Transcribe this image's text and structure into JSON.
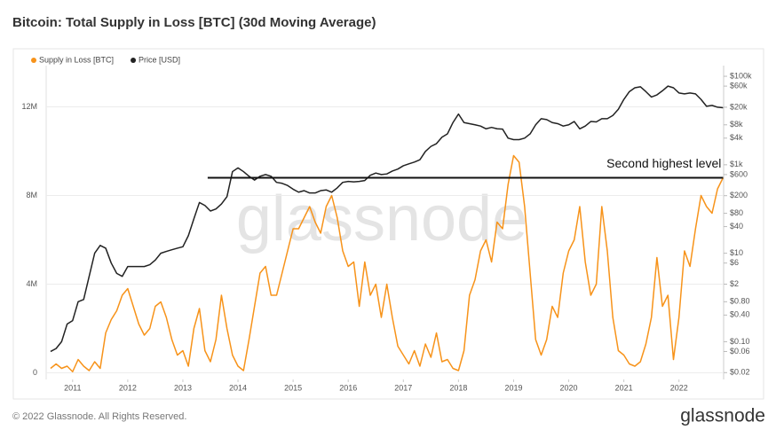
{
  "chart_data": {
    "type": "line",
    "title": "Bitcoin: Total Supply in Loss [BTC] (30d Moving Average)",
    "watermark": "glassnode",
    "footer": "© 2022 Glassnode. All Rights Reserved.",
    "logo": "glassnode",
    "x": [
      2010.6,
      2010.7,
      2010.8,
      2010.9,
      2011.0,
      2011.1,
      2011.2,
      2011.3,
      2011.4,
      2011.5,
      2011.6,
      2011.7,
      2011.8,
      2011.9,
      2012.0,
      2012.1,
      2012.2,
      2012.3,
      2012.4,
      2012.5,
      2012.6,
      2012.7,
      2012.8,
      2012.9,
      2013.0,
      2013.1,
      2013.2,
      2013.3,
      2013.4,
      2013.5,
      2013.6,
      2013.7,
      2013.8,
      2013.9,
      2014.0,
      2014.1,
      2014.2,
      2014.3,
      2014.4,
      2014.5,
      2014.6,
      2014.7,
      2014.8,
      2014.9,
      2015.0,
      2015.1,
      2015.2,
      2015.3,
      2015.4,
      2015.5,
      2015.6,
      2015.7,
      2015.8,
      2015.9,
      2016.0,
      2016.1,
      2016.2,
      2016.3,
      2016.4,
      2016.5,
      2016.6,
      2016.7,
      2016.8,
      2016.9,
      2017.0,
      2017.1,
      2017.2,
      2017.3,
      2017.4,
      2017.5,
      2017.6,
      2017.7,
      2017.8,
      2017.9,
      2018.0,
      2018.1,
      2018.2,
      2018.3,
      2018.4,
      2018.5,
      2018.6,
      2018.7,
      2018.8,
      2018.9,
      2019.0,
      2019.1,
      2019.2,
      2019.3,
      2019.4,
      2019.5,
      2019.6,
      2019.7,
      2019.8,
      2019.9,
      2020.0,
      2020.1,
      2020.2,
      2020.3,
      2020.4,
      2020.5,
      2020.6,
      2020.7,
      2020.8,
      2020.9,
      2021.0,
      2021.1,
      2021.2,
      2021.3,
      2021.4,
      2021.5,
      2021.6,
      2021.7,
      2021.8,
      2021.9,
      2022.0,
      2022.1,
      2022.2,
      2022.3,
      2022.4,
      2022.5,
      2022.6,
      2022.7,
      2022.8
    ],
    "series": [
      {
        "name": "Supply in Loss [BTC]",
        "color": "#f7931a",
        "values": [
          200000,
          400000,
          200000,
          300000,
          50000,
          600000,
          300000,
          100000,
          500000,
          200000,
          1800000,
          2400000,
          2800000,
          3500000,
          3800000,
          3000000,
          2200000,
          1700000,
          2000000,
          3000000,
          3200000,
          2500000,
          1500000,
          800000,
          1000000,
          300000,
          2000000,
          2900000,
          1000000,
          500000,
          1500000,
          3500000,
          2000000,
          800000,
          300000,
          100000,
          1500000,
          3000000,
          4500000,
          4800000,
          3500000,
          3500000,
          4500000,
          5500000,
          6500000,
          6500000,
          7000000,
          7500000,
          6800000,
          6300000,
          7500000,
          8000000,
          7000000,
          5500000,
          4800000,
          5000000,
          3000000,
          5000000,
          3500000,
          4000000,
          2500000,
          4000000,
          2500000,
          1200000,
          800000,
          400000,
          1000000,
          300000,
          1300000,
          700000,
          1800000,
          500000,
          600000,
          200000,
          100000,
          1000000,
          3500000,
          4200000,
          5500000,
          6000000,
          5000000,
          6800000,
          6500000,
          8500000,
          9800000,
          9500000,
          7500000,
          4500000,
          1500000,
          800000,
          1500000,
          3000000,
          2500000,
          4500000,
          5500000,
          6000000,
          7500000,
          5000000,
          3500000,
          4000000,
          7500000,
          5500000,
          2500000,
          1000000,
          800000,
          400000,
          300000,
          500000,
          1300000,
          2500000,
          5200000,
          3000000,
          3500000,
          600000,
          2500000,
          5500000,
          4800000,
          6500000,
          8000000,
          7500000,
          7200000,
          8300000,
          8800000
        ]
      },
      {
        "name": "Price [USD]",
        "color": "#222222",
        "axis": "y2",
        "values": [
          0.06,
          0.07,
          0.1,
          0.25,
          0.3,
          0.8,
          0.9,
          3,
          10,
          15,
          13,
          6,
          3.5,
          3,
          5,
          5,
          5,
          5,
          5.5,
          7,
          10,
          11,
          12,
          13,
          14,
          25,
          60,
          140,
          120,
          90,
          100,
          130,
          190,
          700,
          850,
          700,
          550,
          450,
          550,
          600,
          550,
          400,
          380,
          340,
          280,
          240,
          260,
          230,
          230,
          260,
          270,
          240,
          300,
          400,
          420,
          410,
          420,
          440,
          580,
          650,
          600,
          620,
          720,
          800,
          950,
          1050,
          1150,
          1300,
          2000,
          2600,
          3000,
          4200,
          5000,
          9000,
          14000,
          9000,
          8500,
          8000,
          7500,
          6500,
          7000,
          6500,
          6400,
          4000,
          3700,
          3700,
          4000,
          5000,
          8000,
          11000,
          10500,
          9000,
          8500,
          7500,
          8000,
          9500,
          6500,
          7500,
          9500,
          9300,
          11000,
          11000,
          13000,
          18000,
          30000,
          45000,
          55000,
          58000,
          45000,
          34000,
          38000,
          47000,
          60000,
          55000,
          42000,
          40000,
          42000,
          40000,
          30000,
          21000,
          22000,
          20000,
          19500
        ]
      }
    ],
    "xlim": [
      2010.52,
      2022.81
    ],
    "xticks": [
      2011,
      2012,
      2013,
      2014,
      2015,
      2016,
      2017,
      2018,
      2019,
      2020,
      2021,
      2022
    ],
    "ylim": [
      -300000,
      13700000
    ],
    "yticks": [
      0,
      {
        "value": 4000000,
        "label": "4M"
      },
      {
        "value": 8000000,
        "label": "8M"
      },
      {
        "value": 12000000,
        "label": "12M"
      }
    ],
    "y2lim": [
      0.014,
      145000
    ],
    "y2log": true,
    "y2ticks": [
      {
        "value": 100000,
        "label": "$100k"
      },
      {
        "value": 60000,
        "label": "$60k"
      },
      {
        "value": 20000,
        "label": "$20k"
      },
      {
        "value": 8000,
        "label": "$8k"
      },
      {
        "value": 4000,
        "label": "$4k"
      },
      {
        "value": 1000,
        "label": "$1k"
      },
      {
        "value": 600,
        "label": "$600"
      },
      {
        "value": 200,
        "label": "$200"
      },
      {
        "value": 80,
        "label": "$80"
      },
      {
        "value": 40,
        "label": "$40"
      },
      {
        "value": 10,
        "label": "$10"
      },
      {
        "value": 6,
        "label": "$6"
      },
      {
        "value": 2,
        "label": "$2"
      },
      {
        "value": 0.8,
        "label": "$0.80"
      },
      {
        "value": 0.4,
        "label": "$0.40"
      },
      {
        "value": 0.1,
        "label": "$0.10"
      },
      {
        "value": 0.06,
        "label": "$0.06"
      },
      {
        "value": 0.02,
        "label": "$0.02"
      }
    ],
    "grid": true,
    "legend": "top-left",
    "annotations": [
      {
        "text": "Second highest level",
        "y": 8800000,
        "x": [
          2013.45,
          2022.8
        ]
      }
    ]
  }
}
